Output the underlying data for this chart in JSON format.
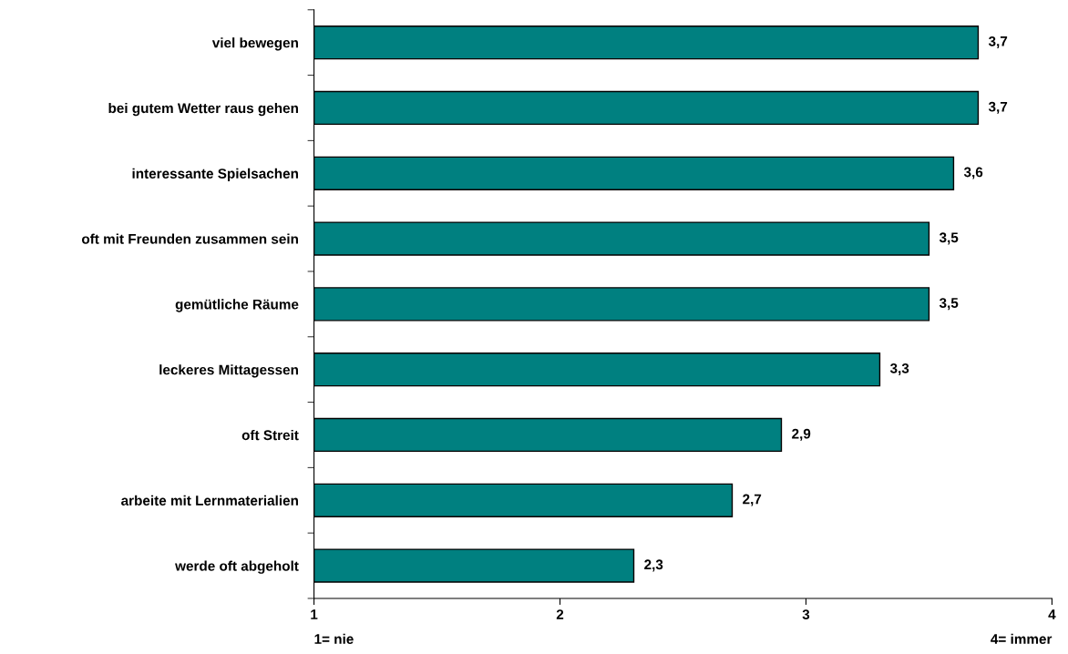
{
  "chart_data": {
    "type": "bar",
    "orientation": "horizontal",
    "categories": [
      "viel bewegen",
      "bei gutem Wetter raus gehen",
      "interessante Spielsachen",
      "oft mit Freunden zusammen sein",
      "gemütliche Räume",
      "leckeres Mittagessen",
      "oft Streit",
      "arbeite mit Lernmaterialien",
      "werde oft abgeholt"
    ],
    "values": [
      3.7,
      3.7,
      3.6,
      3.5,
      3.5,
      3.3,
      2.9,
      2.7,
      2.3
    ],
    "value_labels": [
      "3,7",
      "3,7",
      "3,6",
      "3,5",
      "3,5",
      "3,3",
      "2,9",
      "2,7",
      "2,3"
    ],
    "color": "#008080",
    "xlim": [
      1,
      4
    ],
    "xticks": [
      1,
      2,
      3,
      4
    ],
    "annotations": [
      "1= nie",
      "4= immer"
    ],
    "grid": false,
    "legend": false
  }
}
